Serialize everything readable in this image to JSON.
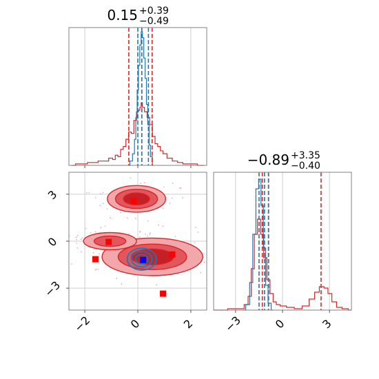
{
  "chart_data": {
    "type": "corner",
    "grid": true,
    "colors": {
      "series_a": "#d62728",
      "series_b": "#1f77b4",
      "truth_red": "#ff0000",
      "truth_blue": "#0000ff"
    },
    "params": [
      {
        "title_value": "0.15",
        "title_upper": "+0.39",
        "title_lower": "−0.49",
        "range": [
          -2.6,
          2.6
        ],
        "ticks": [
          -2,
          0,
          2
        ],
        "tick_labels": [
          "−2",
          "0",
          "2"
        ]
      },
      {
        "title_value": "−0.89",
        "title_upper": "+3.35",
        "title_lower": "−0.40",
        "range": [
          -4.4,
          4.4
        ],
        "ticks": [
          -3,
          0,
          3
        ],
        "tick_labels": [
          "−3",
          "0",
          "3"
        ]
      }
    ],
    "marginal_1": {
      "red_hist": [
        [
          -2.5,
          0.0
        ],
        [
          -2.2,
          0.01
        ],
        [
          -2.0,
          0.01
        ],
        [
          -1.8,
          0.02
        ],
        [
          -1.6,
          0.02
        ],
        [
          -1.4,
          0.03
        ],
        [
          -1.2,
          0.03
        ],
        [
          -1.0,
          0.05
        ],
        [
          -0.9,
          0.04
        ],
        [
          -0.8,
          0.07
        ],
        [
          -0.7,
          0.06
        ],
        [
          -0.6,
          0.11
        ],
        [
          -0.5,
          0.13
        ],
        [
          -0.4,
          0.18
        ],
        [
          -0.3,
          0.23
        ],
        [
          -0.2,
          0.22
        ],
        [
          -0.1,
          0.31
        ],
        [
          0.0,
          0.37
        ],
        [
          0.05,
          0.38
        ],
        [
          0.1,
          0.4
        ],
        [
          0.15,
          0.43
        ],
        [
          0.2,
          0.4
        ],
        [
          0.3,
          0.37
        ],
        [
          0.4,
          0.33
        ],
        [
          0.5,
          0.28
        ],
        [
          0.6,
          0.2
        ],
        [
          0.7,
          0.15
        ],
        [
          0.8,
          0.13
        ],
        [
          0.9,
          0.1
        ],
        [
          1.0,
          0.08
        ],
        [
          1.2,
          0.05
        ],
        [
          1.4,
          0.03
        ],
        [
          1.6,
          0.02
        ],
        [
          1.8,
          0.01
        ],
        [
          2.0,
          0.01
        ],
        [
          2.5,
          0.0
        ]
      ],
      "blue_hist": [
        [
          -0.35,
          0.0
        ],
        [
          -0.25,
          0.03
        ],
        [
          -0.15,
          0.08
        ],
        [
          -0.1,
          0.18
        ],
        [
          -0.05,
          0.33
        ],
        [
          0.0,
          0.52
        ],
        [
          0.05,
          0.69
        ],
        [
          0.1,
          0.83
        ],
        [
          0.15,
          0.92
        ],
        [
          0.2,
          0.88
        ],
        [
          0.25,
          0.74
        ],
        [
          0.3,
          0.6
        ],
        [
          0.35,
          0.42
        ],
        [
          0.4,
          0.28
        ],
        [
          0.45,
          0.14
        ],
        [
          0.5,
          0.06
        ],
        [
          0.6,
          0.0
        ]
      ],
      "red_quantiles": [
        -0.34,
        0.15,
        0.54
      ],
      "blue_quantiles": [
        0.0,
        0.15,
        0.4
      ]
    },
    "marginal_2": {
      "red_hist": [
        [
          -4.4,
          0.0
        ],
        [
          -2.6,
          0.01
        ],
        [
          -2.3,
          0.04
        ],
        [
          -2.1,
          0.1
        ],
        [
          -1.9,
          0.3
        ],
        [
          -1.7,
          0.55
        ],
        [
          -1.5,
          0.66
        ],
        [
          -1.3,
          0.55
        ],
        [
          -1.1,
          0.38
        ],
        [
          -0.9,
          0.22
        ],
        [
          -0.7,
          0.12
        ],
        [
          -0.5,
          0.06
        ],
        [
          -0.3,
          0.04
        ],
        [
          0.0,
          0.03
        ],
        [
          0.5,
          0.02
        ],
        [
          1.0,
          0.01
        ],
        [
          1.5,
          0.03
        ],
        [
          1.9,
          0.08
        ],
        [
          2.2,
          0.13
        ],
        [
          2.5,
          0.17
        ],
        [
          2.8,
          0.16
        ],
        [
          3.0,
          0.12
        ],
        [
          3.3,
          0.06
        ],
        [
          3.6,
          0.02
        ],
        [
          4.0,
          0.01
        ],
        [
          4.4,
          0.0
        ]
      ],
      "blue_hist": [
        [
          -2.5,
          0.0
        ],
        [
          -2.2,
          0.04
        ],
        [
          -2.0,
          0.2
        ],
        [
          -1.8,
          0.55
        ],
        [
          -1.6,
          0.88
        ],
        [
          -1.45,
          0.95
        ],
        [
          -1.3,
          0.76
        ],
        [
          -1.15,
          0.45
        ],
        [
          -1.0,
          0.18
        ],
        [
          -0.85,
          0.05
        ],
        [
          -0.6,
          0.0
        ]
      ],
      "red_quantiles": [
        -1.29,
        -0.89,
        2.46
      ],
      "blue_quantiles": [
        -1.5,
        -1.15,
        -0.9
      ]
    },
    "joint": {
      "red_modes": [
        {
          "cx": -0.05,
          "cy": 2.7,
          "rx": 1.1,
          "ry": 0.85,
          "levels": [
            1.0,
            0.72,
            0.45
          ]
        },
        {
          "cx": 0.55,
          "cy": -1.0,
          "rx": 1.9,
          "ry": 1.2,
          "levels": [
            1.0,
            0.68,
            0.42
          ]
        },
        {
          "cx": -1.05,
          "cy": 0.0,
          "rx": 1.0,
          "ry": 0.55,
          "levels": [
            1.0,
            0.6
          ]
        }
      ],
      "blue_mode": {
        "cx": 0.15,
        "cy": -1.15,
        "rx": 0.55,
        "ry": 0.7,
        "levels": [
          1.0,
          0.7,
          0.42
        ]
      },
      "red_markers": [
        [
          -0.15,
          2.55
        ],
        [
          -1.1,
          -0.05
        ],
        [
          -1.6,
          -1.15
        ],
        [
          1.3,
          -0.85
        ],
        [
          0.95,
          -3.35
        ]
      ],
      "blue_marker": [
        0.2,
        -1.2
      ]
    }
  }
}
